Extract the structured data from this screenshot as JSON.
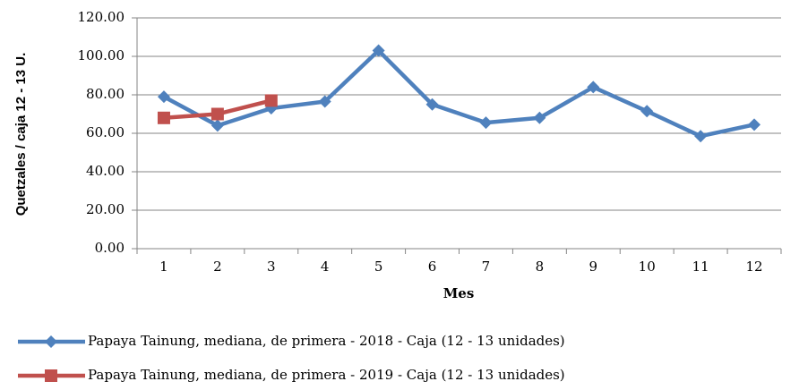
{
  "chart_data": {
    "type": "line",
    "x_label": "Mes",
    "y_label": "Quetzales / caja 12 - 13 U.",
    "categories": [
      "1",
      "2",
      "3",
      "4",
      "5",
      "6",
      "7",
      "8",
      "9",
      "10",
      "11",
      "12"
    ],
    "series": [
      {
        "name": "Papaya Tainung, mediana, de primera - 2018 - Caja (12 - 13 unidades)",
        "color": "#4f81bd",
        "marker": "diamond",
        "values": [
          79,
          64,
          73,
          76.5,
          103,
          75,
          65.5,
          68,
          84,
          71.5,
          58.5,
          64.5
        ]
      },
      {
        "name": "Papaya Tainung, mediana, de primera - 2019 - Caja (12 - 13 unidades)",
        "color": "#c0504d",
        "marker": "square",
        "values": [
          68,
          70,
          77,
          null,
          null,
          null,
          null,
          null,
          null,
          null,
          null,
          null
        ]
      }
    ],
    "ylim": [
      0,
      120
    ],
    "yticks": [
      {
        "value": 0,
        "label": "0.00"
      },
      {
        "value": 20,
        "label": "20.00"
      },
      {
        "value": 40,
        "label": "40.00"
      },
      {
        "value": 60,
        "label": "60.00"
      },
      {
        "value": 80,
        "label": "80.00"
      },
      {
        "value": 100,
        "label": "100.00"
      },
      {
        "value": 120,
        "label": "120.00"
      }
    ],
    "grid": true,
    "legend": "bottom"
  }
}
